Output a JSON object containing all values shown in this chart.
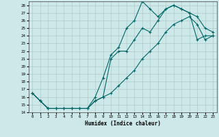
{
  "xlabel": "Humidex (Indice chaleur)",
  "xlim": [
    -0.5,
    23.5
  ],
  "ylim": [
    14,
    28.5
  ],
  "xticks": [
    0,
    1,
    2,
    3,
    4,
    5,
    6,
    7,
    8,
    9,
    10,
    11,
    12,
    13,
    14,
    15,
    16,
    17,
    18,
    19,
    20,
    21,
    22,
    23
  ],
  "yticks": [
    14,
    15,
    16,
    17,
    18,
    19,
    20,
    21,
    22,
    23,
    24,
    25,
    26,
    27,
    28
  ],
  "line_color": "#006666",
  "bg_color": "#cce8e8",
  "grid_color": "#b0c8c8",
  "line1_x": [
    0,
    1,
    2,
    3,
    4,
    5,
    6,
    7,
    8,
    9,
    10,
    11,
    12,
    13,
    14,
    15,
    16,
    17,
    18,
    19,
    20,
    21,
    22,
    23
  ],
  "line1_y": [
    16.5,
    15.5,
    14.5,
    14.5,
    14.5,
    14.5,
    14.5,
    14.5,
    16.0,
    18.5,
    21.5,
    22.5,
    25.0,
    26.0,
    28.5,
    27.5,
    26.5,
    27.5,
    28.0,
    27.5,
    27.0,
    26.5,
    25.0,
    24.5
  ],
  "line2_x": [
    0,
    1,
    2,
    3,
    4,
    5,
    6,
    7,
    8,
    9,
    10,
    11,
    12,
    13,
    14,
    15,
    16,
    17,
    18,
    19,
    20,
    21,
    22,
    23
  ],
  "line2_y": [
    16.5,
    15.5,
    14.5,
    14.5,
    14.5,
    14.5,
    14.5,
    14.5,
    15.5,
    16.0,
    21.0,
    22.0,
    22.0,
    23.5,
    25.0,
    24.5,
    26.0,
    27.5,
    28.0,
    27.5,
    27.0,
    23.5,
    24.0,
    24.0
  ],
  "line3_x": [
    0,
    1,
    2,
    3,
    4,
    5,
    6,
    7,
    8,
    9,
    10,
    11,
    12,
    13,
    14,
    15,
    16,
    17,
    18,
    19,
    20,
    21,
    22,
    23
  ],
  "line3_y": [
    16.5,
    15.5,
    14.5,
    14.5,
    14.5,
    14.5,
    14.5,
    14.5,
    15.5,
    16.0,
    16.5,
    17.5,
    18.5,
    19.5,
    21.0,
    22.0,
    23.0,
    24.5,
    25.5,
    26.0,
    26.5,
    25.5,
    23.5,
    24.0
  ]
}
